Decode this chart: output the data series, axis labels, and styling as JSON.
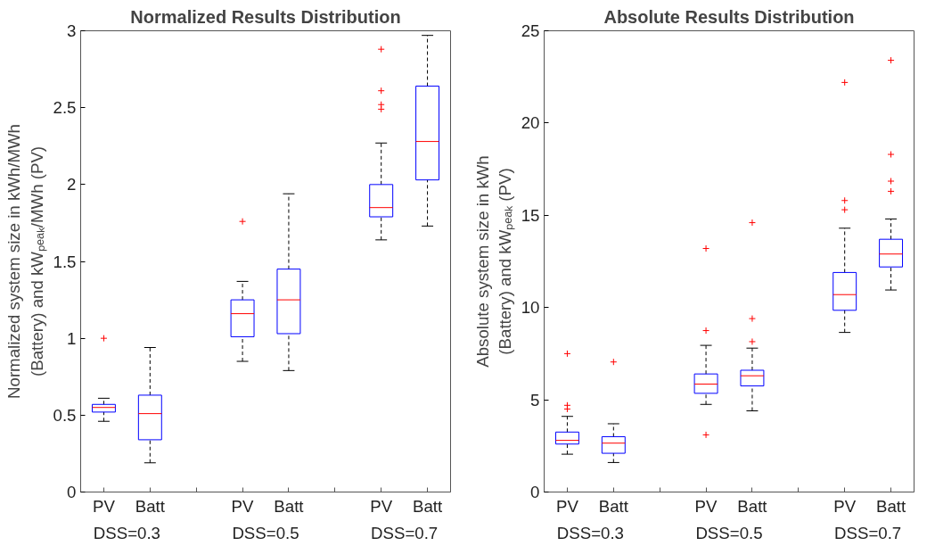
{
  "chart_data": [
    {
      "type": "box",
      "title": "Normalized Results Distribution",
      "ylabel": "Normalized system size in kWh/MWh (Battery) and kWₚₑₐₖ/MWh (PV)",
      "categories": [
        "PV",
        "Batt",
        null,
        "PV",
        "Batt",
        null,
        "PV",
        "Batt"
      ],
      "annotations": [
        "DSS=0.3",
        "DSS=0.5",
        "DSS=0.7"
      ],
      "ylim": [
        0,
        3
      ],
      "yticks": [
        0,
        0.5,
        1,
        1.5,
        2,
        2.5,
        3
      ],
      "grid": false,
      "marker": "cross",
      "line_style": "dashed",
      "series": [
        {
          "color": "#0000ff",
          "boxes": [
            {
              "low": 0.46,
              "q1": 0.52,
              "median": 0.55,
              "q3": 0.57,
              "high": 0.61,
              "outliers": [
                1.0
              ]
            },
            {
              "low": 0.19,
              "q1": 0.34,
              "median": 0.51,
              "q3": 0.63,
              "high": 0.94
            },
            {
              "low": 0,
              "q1": 0,
              "median": 0,
              "q3": 0,
              "high": 0
            },
            {
              "low": 0.85,
              "q1": 1.01,
              "median": 1.16,
              "q3": 1.25,
              "high": 1.37,
              "outliers": [
                1.76
              ]
            },
            {
              "low": 0.79,
              "q1": 1.03,
              "median": 1.25,
              "q3": 1.45,
              "high": 1.94
            },
            {
              "low": 0,
              "q1": 0,
              "median": 0,
              "q3": 0,
              "high": 0
            },
            {
              "low": 1.64,
              "q1": 1.79,
              "median": 1.85,
              "q3": 2.0,
              "high": 2.27,
              "outliers": [
                2.49,
                2.52,
                2.61,
                2.88
              ]
            },
            {
              "low": 1.73,
              "q1": 2.03,
              "median": 2.28,
              "q3": 2.64,
              "high": 2.97
            }
          ]
        }
      ]
    },
    {
      "type": "box",
      "title": "Absolute Results Distribution",
      "ylabel": "Absolute system size in kWh (Battery) and kWₚₑₐₖ (PV)",
      "categories": [
        "PV",
        "Batt",
        null,
        "PV",
        "Batt",
        null,
        "PV",
        "Batt"
      ],
      "annotations": [
        "DSS=0.3",
        "DSS=0.5",
        "DSS=0.7"
      ],
      "ylim": [
        0,
        25
      ],
      "yticks": [
        0,
        5,
        10,
        15,
        20,
        25
      ],
      "grid": false,
      "marker": "cross",
      "line_style": "dashed",
      "series": [
        {
          "color": "#0000ff",
          "boxes": [
            {
              "low": 2.05,
              "q1": 2.6,
              "median": 2.8,
              "q3": 3.25,
              "high": 4.1,
              "outliers": [
                4.5,
                4.7,
                7.5
              ]
            },
            {
              "low": 1.6,
              "q1": 2.1,
              "median": 2.65,
              "q3": 3.0,
              "high": 3.7,
              "outliers": [
                7.05
              ]
            },
            {
              "low": 0,
              "q1": 0,
              "median": 0,
              "q3": 0,
              "high": 0
            },
            {
              "low": 4.75,
              "q1": 5.35,
              "median": 5.85,
              "q3": 6.4,
              "high": 7.95,
              "outliers": [
                3.1,
                8.75,
                13.2
              ]
            },
            {
              "low": 4.4,
              "q1": 5.75,
              "median": 6.3,
              "q3": 6.6,
              "high": 7.8,
              "outliers": [
                8.15,
                9.4,
                14.6
              ]
            },
            {
              "low": 0,
              "q1": 0,
              "median": 0,
              "q3": 0,
              "high": 0
            },
            {
              "low": 8.65,
              "q1": 9.85,
              "median": 10.7,
              "q3": 11.9,
              "high": 14.3,
              "outliers": [
                15.3,
                15.8,
                22.2
              ]
            },
            {
              "low": 10.95,
              "q1": 12.2,
              "median": 12.9,
              "q3": 13.7,
              "high": 14.8,
              "outliers": [
                16.3,
                16.85,
                18.3,
                23.4
              ]
            }
          ]
        }
      ]
    }
  ]
}
